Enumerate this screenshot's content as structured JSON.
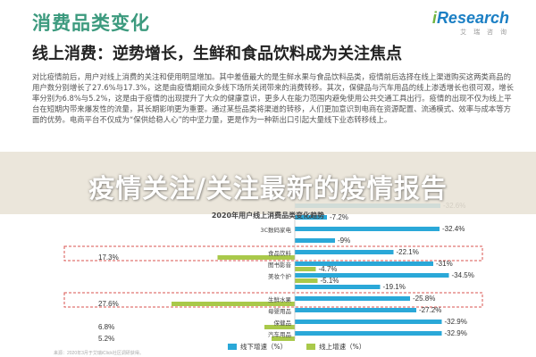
{
  "header": {
    "title": "消费品类变化",
    "subtitle": "线上消费：逆势增长，生鲜和食品饮料成为关注焦点",
    "logo_text": "Research",
    "logo_i": "i",
    "logo_sub": "艾 瑞 咨 询"
  },
  "paragraph": "对比疫情前后，用户对线上消费的关注和使用明显增加。其中差值最大的是生鲜水果与食品饮料品类，疫情前后选择在线上渠道购买这两类商品的用户数分别增长了27.6%与17.3%，这是由疫情期间众多线下场所关闭带来的消费转移。其次，保健品与汽车用品的线上渗透增长也很可观，增长率分别为6.8%与5.2%，这是由于疫情的出现提升了大众的健康意识，更多人在能力范围内避免使用公共交通工具出行。疫情的出现不仅为线上平台在短期内带来爆发性的流量，其长期影响更为重要。通过某些品类将渠道的转移，人们更加意识到电商在资源配置、流通模式、效率与成本等方面的优势。电商平台不仅成为“保供给稳人心”的中坚力量，更是作为一种新出口引起大量线下业态转移线上。",
  "banner": {
    "text": "疫情关注/关注最新的疫情报告"
  },
  "chart_data": {
    "type": "bar",
    "title": "2020年用户线上消费品类变化趋势",
    "categories": [
      "",
      "",
      "3C数码家电",
      "",
      "食品饮料",
      "图书影音",
      "美妆个护",
      "",
      "生鲜水果",
      "母婴用品",
      "保健品",
      "汽车用品"
    ],
    "series": [
      {
        "name": "线下增速（%）",
        "values": [
          -32.6,
          -7.2,
          -32.4,
          -9.0,
          -22.1,
          -31.0,
          -34.5,
          -19.1,
          -25.8,
          -27.2,
          -32.9,
          -32.9
        ],
        "color": "#2aa8d8"
      },
      {
        "name": "线上增速（%）",
        "values": [
          null,
          null,
          null,
          null,
          17.3,
          -4.7,
          -5.1,
          null,
          27.6,
          null,
          6.8,
          5.2
        ],
        "color": "#a9c94a"
      }
    ],
    "highlighted": [
      "食品饮料",
      "生鲜水果"
    ]
  },
  "legend": {
    "offline": "线下增速（%）",
    "online": "线上增速（%）"
  },
  "source": "来源：2020年3月于艾瑞iClick社区调研获得。"
}
